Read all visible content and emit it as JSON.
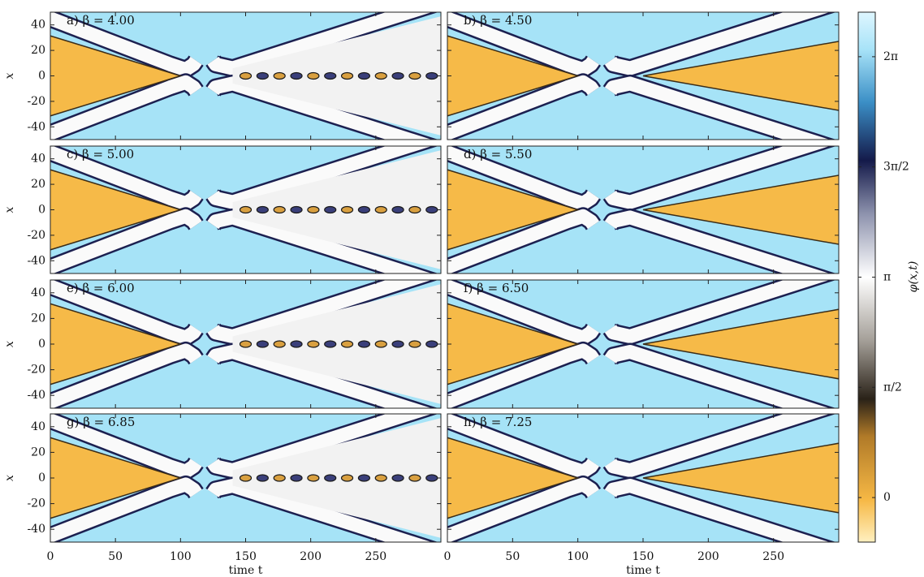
{
  "chart_data": [
    {
      "type": "heatmap",
      "title": "a) β = 4.00",
      "ylabel": "x",
      "xlim": [
        0,
        300
      ],
      "ylim": [
        -50,
        50
      ],
      "xticks": [
        0,
        50,
        100,
        150,
        200,
        250
      ],
      "yticks": [
        -40,
        -20,
        0,
        20,
        40
      ]
    },
    {
      "type": "heatmap",
      "title": "b) β = 4.50",
      "xlim": [
        0,
        300
      ],
      "ylim": [
        -50,
        50
      ],
      "xticks": [
        0,
        50,
        100,
        150,
        200,
        250
      ],
      "yticks": [
        -40,
        -20,
        0,
        20,
        40
      ]
    },
    {
      "type": "heatmap",
      "title": "c) β = 5.00",
      "ylabel": "x",
      "xlim": [
        0,
        300
      ],
      "ylim": [
        -50,
        50
      ],
      "xticks": [
        0,
        50,
        100,
        150,
        200,
        250
      ],
      "yticks": [
        -40,
        -20,
        0,
        20,
        40
      ]
    },
    {
      "type": "heatmap",
      "title": "d) β = 5.50",
      "xlim": [
        0,
        300
      ],
      "ylim": [
        -50,
        50
      ],
      "xticks": [
        0,
        50,
        100,
        150,
        200,
        250
      ],
      "yticks": [
        -40,
        -20,
        0,
        20,
        40
      ]
    },
    {
      "type": "heatmap",
      "title": "e) β = 6.00",
      "ylabel": "x",
      "xlim": [
        0,
        300
      ],
      "ylim": [
        -50,
        50
      ],
      "xticks": [
        0,
        50,
        100,
        150,
        200,
        250
      ],
      "yticks": [
        -40,
        -20,
        0,
        20,
        40
      ]
    },
    {
      "type": "heatmap",
      "title": "f) β = 6.50",
      "xlim": [
        0,
        300
      ],
      "ylim": [
        -50,
        50
      ],
      "xticks": [
        0,
        50,
        100,
        150,
        200,
        250
      ],
      "yticks": [
        -40,
        -20,
        0,
        20,
        40
      ]
    },
    {
      "type": "heatmap",
      "title": "g) β = 6.85",
      "ylabel": "x",
      "xlabel": "time t",
      "xlim": [
        0,
        300
      ],
      "ylim": [
        -50,
        50
      ],
      "xticks": [
        0,
        50,
        100,
        150,
        200,
        250
      ],
      "yticks": [
        -40,
        -20,
        0,
        20,
        40
      ]
    },
    {
      "type": "heatmap",
      "title": "h) β = 7.25",
      "xlabel": "time t",
      "xlim": [
        0,
        300
      ],
      "ylim": [
        -50,
        50
      ],
      "xticks": [
        0,
        50,
        100,
        150,
        200,
        250
      ],
      "yticks": [
        -40,
        -20,
        0,
        20,
        40
      ]
    }
  ],
  "colorbar": {
    "label": "φ(x,t)",
    "clim": [
      -0.635,
      6.918
    ],
    "ticks": [
      {
        "value": 0,
        "label": "0"
      },
      {
        "value": 1.5708,
        "label": "π/2"
      },
      {
        "value": 3.1416,
        "label": "π"
      },
      {
        "value": 4.7124,
        "label": "3π/2"
      },
      {
        "value": 6.2832,
        "label": "2π"
      }
    ]
  }
}
